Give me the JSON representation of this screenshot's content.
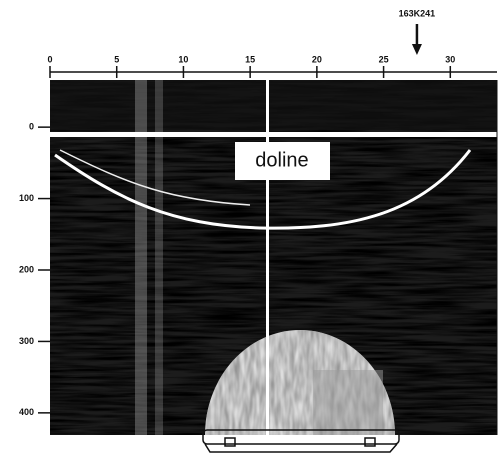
{
  "chart_data": {
    "type": "radargram",
    "xlim": [
      0,
      33.5
    ],
    "xticks": [
      0,
      5,
      10,
      15,
      20,
      25,
      30
    ],
    "ylim": [
      -66,
      431
    ],
    "yticks": [
      0,
      100,
      200,
      300,
      400
    ],
    "marker": {
      "label": "163K241",
      "x": 27.5
    },
    "annotation": "doline"
  }
}
